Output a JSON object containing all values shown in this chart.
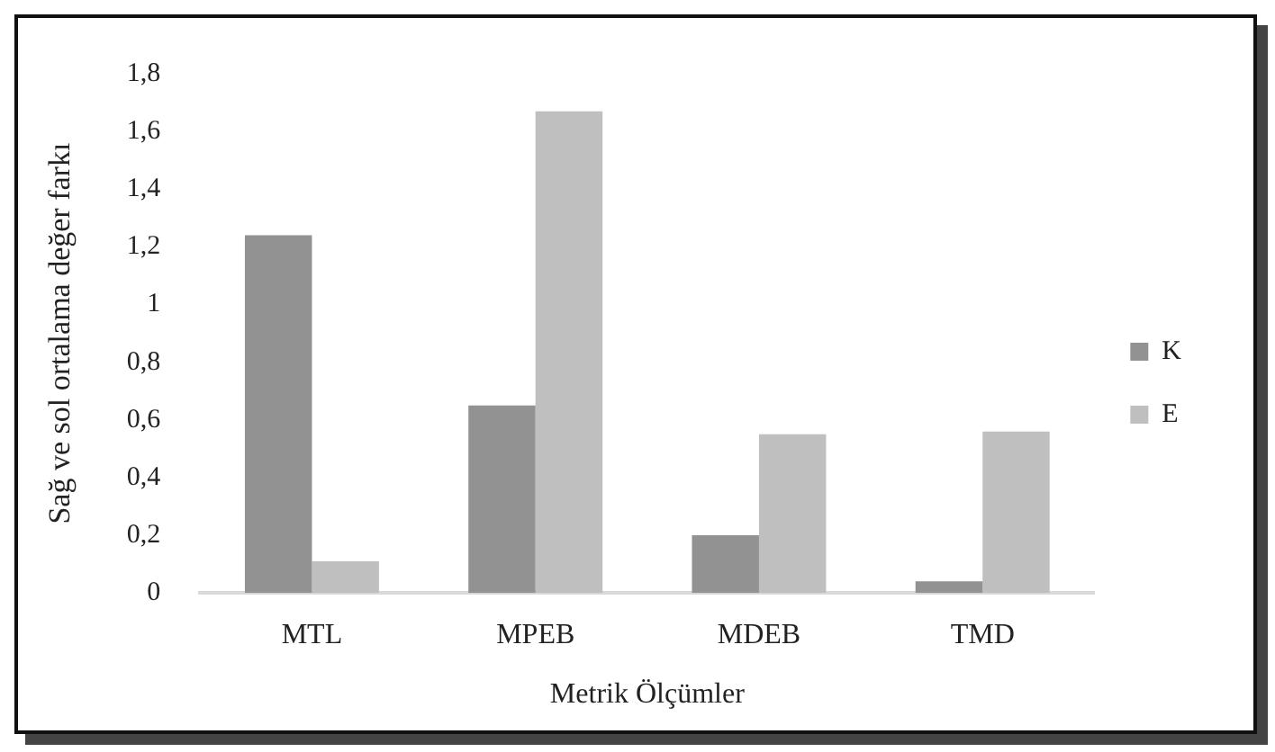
{
  "chart_data": {
    "type": "bar",
    "xlabel": "Metrik Ölçümler",
    "ylabel": "Sağ ve sol ortalama değer farkı",
    "categories": [
      "MTL",
      "MPEB",
      "MDEB",
      "TMD"
    ],
    "series": [
      {
        "name": "K",
        "color": "#929292",
        "values": [
          1.24,
          0.65,
          0.2,
          0.04
        ]
      },
      {
        "name": "E",
        "color": "#bfbfbf",
        "values": [
          0.11,
          1.67,
          0.55,
          0.56
        ]
      }
    ],
    "ylim": [
      0,
      1.8
    ],
    "yticks": [
      0,
      {
        "value": 0.2,
        "label": "0,2"
      },
      {
        "value": 0.4,
        "label": "0,4"
      },
      {
        "value": 0.6,
        "label": "0,6"
      },
      {
        "value": 0.8,
        "label": "0,8"
      },
      1,
      {
        "value": 1.2,
        "label": "1,2"
      },
      {
        "value": 1.4,
        "label": "1,4"
      },
      {
        "value": 1.6,
        "label": "1,6"
      },
      {
        "value": 1.8,
        "label": "1,8"
      }
    ],
    "grid": false,
    "legend": "right"
  }
}
